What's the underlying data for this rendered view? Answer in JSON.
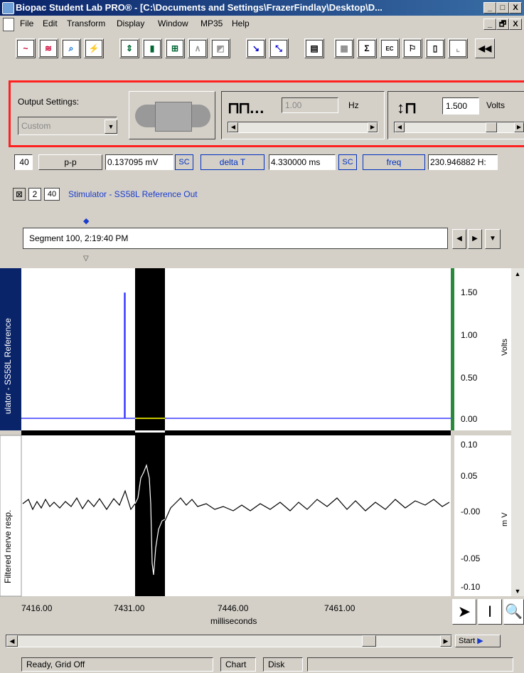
{
  "window": {
    "title": "Biopac Student Lab PRO® - [C:\\Documents and Settings\\FrazerFindlay\\Desktop\\D...",
    "controls": [
      "_",
      "□",
      "X"
    ],
    "doc_controls": [
      "_",
      "🗗",
      "X"
    ]
  },
  "menu": [
    "File",
    "Edit",
    "Transform",
    "Display",
    "Window",
    "MP35",
    "Help"
  ],
  "toolbar": {
    "icons": [
      "chart-mode-icon",
      "overlap-icon",
      "zoom-icon",
      "waveform-icon",
      "scale-icon",
      "bars-icon",
      "grid-icon",
      "autoscale-icon",
      "compare-icon",
      "crosshair-icon",
      "marker-icon",
      "journal-icon",
      "grid2-icon",
      "sigma-icon",
      "ec-icon",
      "flag-icon",
      "doc-icon",
      "graph-icon",
      "rewind-icon"
    ]
  },
  "output_settings": {
    "label": "Output Settings:",
    "preset": "Custom",
    "freq_value": "1.00",
    "freq_unit": "Hz",
    "volt_value": "1.500",
    "volt_unit": "Volts"
  },
  "measurements": {
    "channel": "40",
    "items": [
      {
        "type": "p-p",
        "value": "0.137095 mV",
        "sc": "SC"
      },
      {
        "type": "delta T",
        "value": "4.330000 ms",
        "sc": "SC"
      },
      {
        "type": "freq",
        "value": "230.946882 H:"
      }
    ]
  },
  "channels": {
    "boxes": [
      "",
      "2",
      "40"
    ],
    "label": "Stimulator - SS58L Reference Out"
  },
  "segment": {
    "label": "Segment 100, 2:19:40 PM"
  },
  "chart_data": {
    "type": "line",
    "xlabel": "milliseconds",
    "x_ticks": [
      "7416.00",
      "7431.00",
      "7446.00",
      "7461.00"
    ],
    "panels": [
      {
        "ylabel": "ulator - SS58L Reference",
        "unit": "Volts",
        "y_ticks": [
          "1.50",
          "1.00",
          "0.50",
          "0.00"
        ],
        "series_color": "#3c3cff"
      },
      {
        "ylabel": "Filtered nerve resp.",
        "unit": "m V",
        "y_ticks": [
          "0.10",
          "0.05",
          "-0.00",
          "-0.05",
          "-0.10"
        ],
        "series_color": "#000000"
      }
    ],
    "selection_color": "#000000"
  },
  "status": {
    "text": "Ready, Grid Off",
    "chart_tab": "Chart",
    "disk_tab": "Disk",
    "start": "Start"
  }
}
